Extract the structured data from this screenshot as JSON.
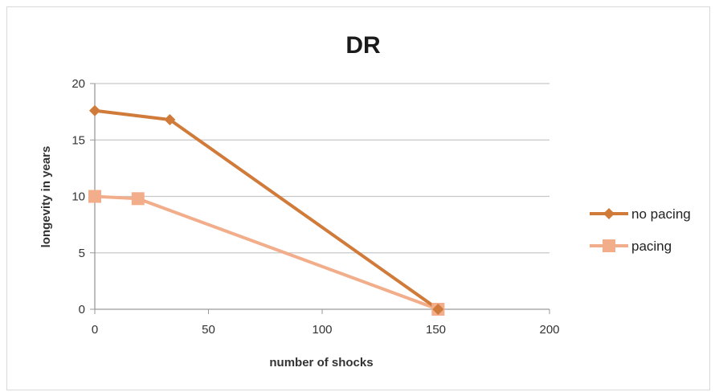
{
  "chart_data": {
    "type": "line",
    "title": "DR",
    "xlabel": "number of shocks",
    "ylabel": "longevity in years",
    "xlim": [
      0,
      200
    ],
    "ylim": [
      0,
      20
    ],
    "xticks": [
      "0",
      "50",
      "100",
      "150",
      "200"
    ],
    "yticks": [
      "0",
      "5",
      "10",
      "15",
      "20"
    ],
    "grid": "horizontal",
    "legend_position": "right",
    "series": [
      {
        "name": "no pacing",
        "color": "#d07b3a",
        "marker": "diamond",
        "x": [
          0,
          33,
          151
        ],
        "y": [
          17.6,
          16.8,
          0
        ]
      },
      {
        "name": "pacing",
        "color": "#f2ad8a",
        "marker": "square",
        "x": [
          0,
          19,
          151
        ],
        "y": [
          10.0,
          9.8,
          0
        ]
      }
    ]
  }
}
